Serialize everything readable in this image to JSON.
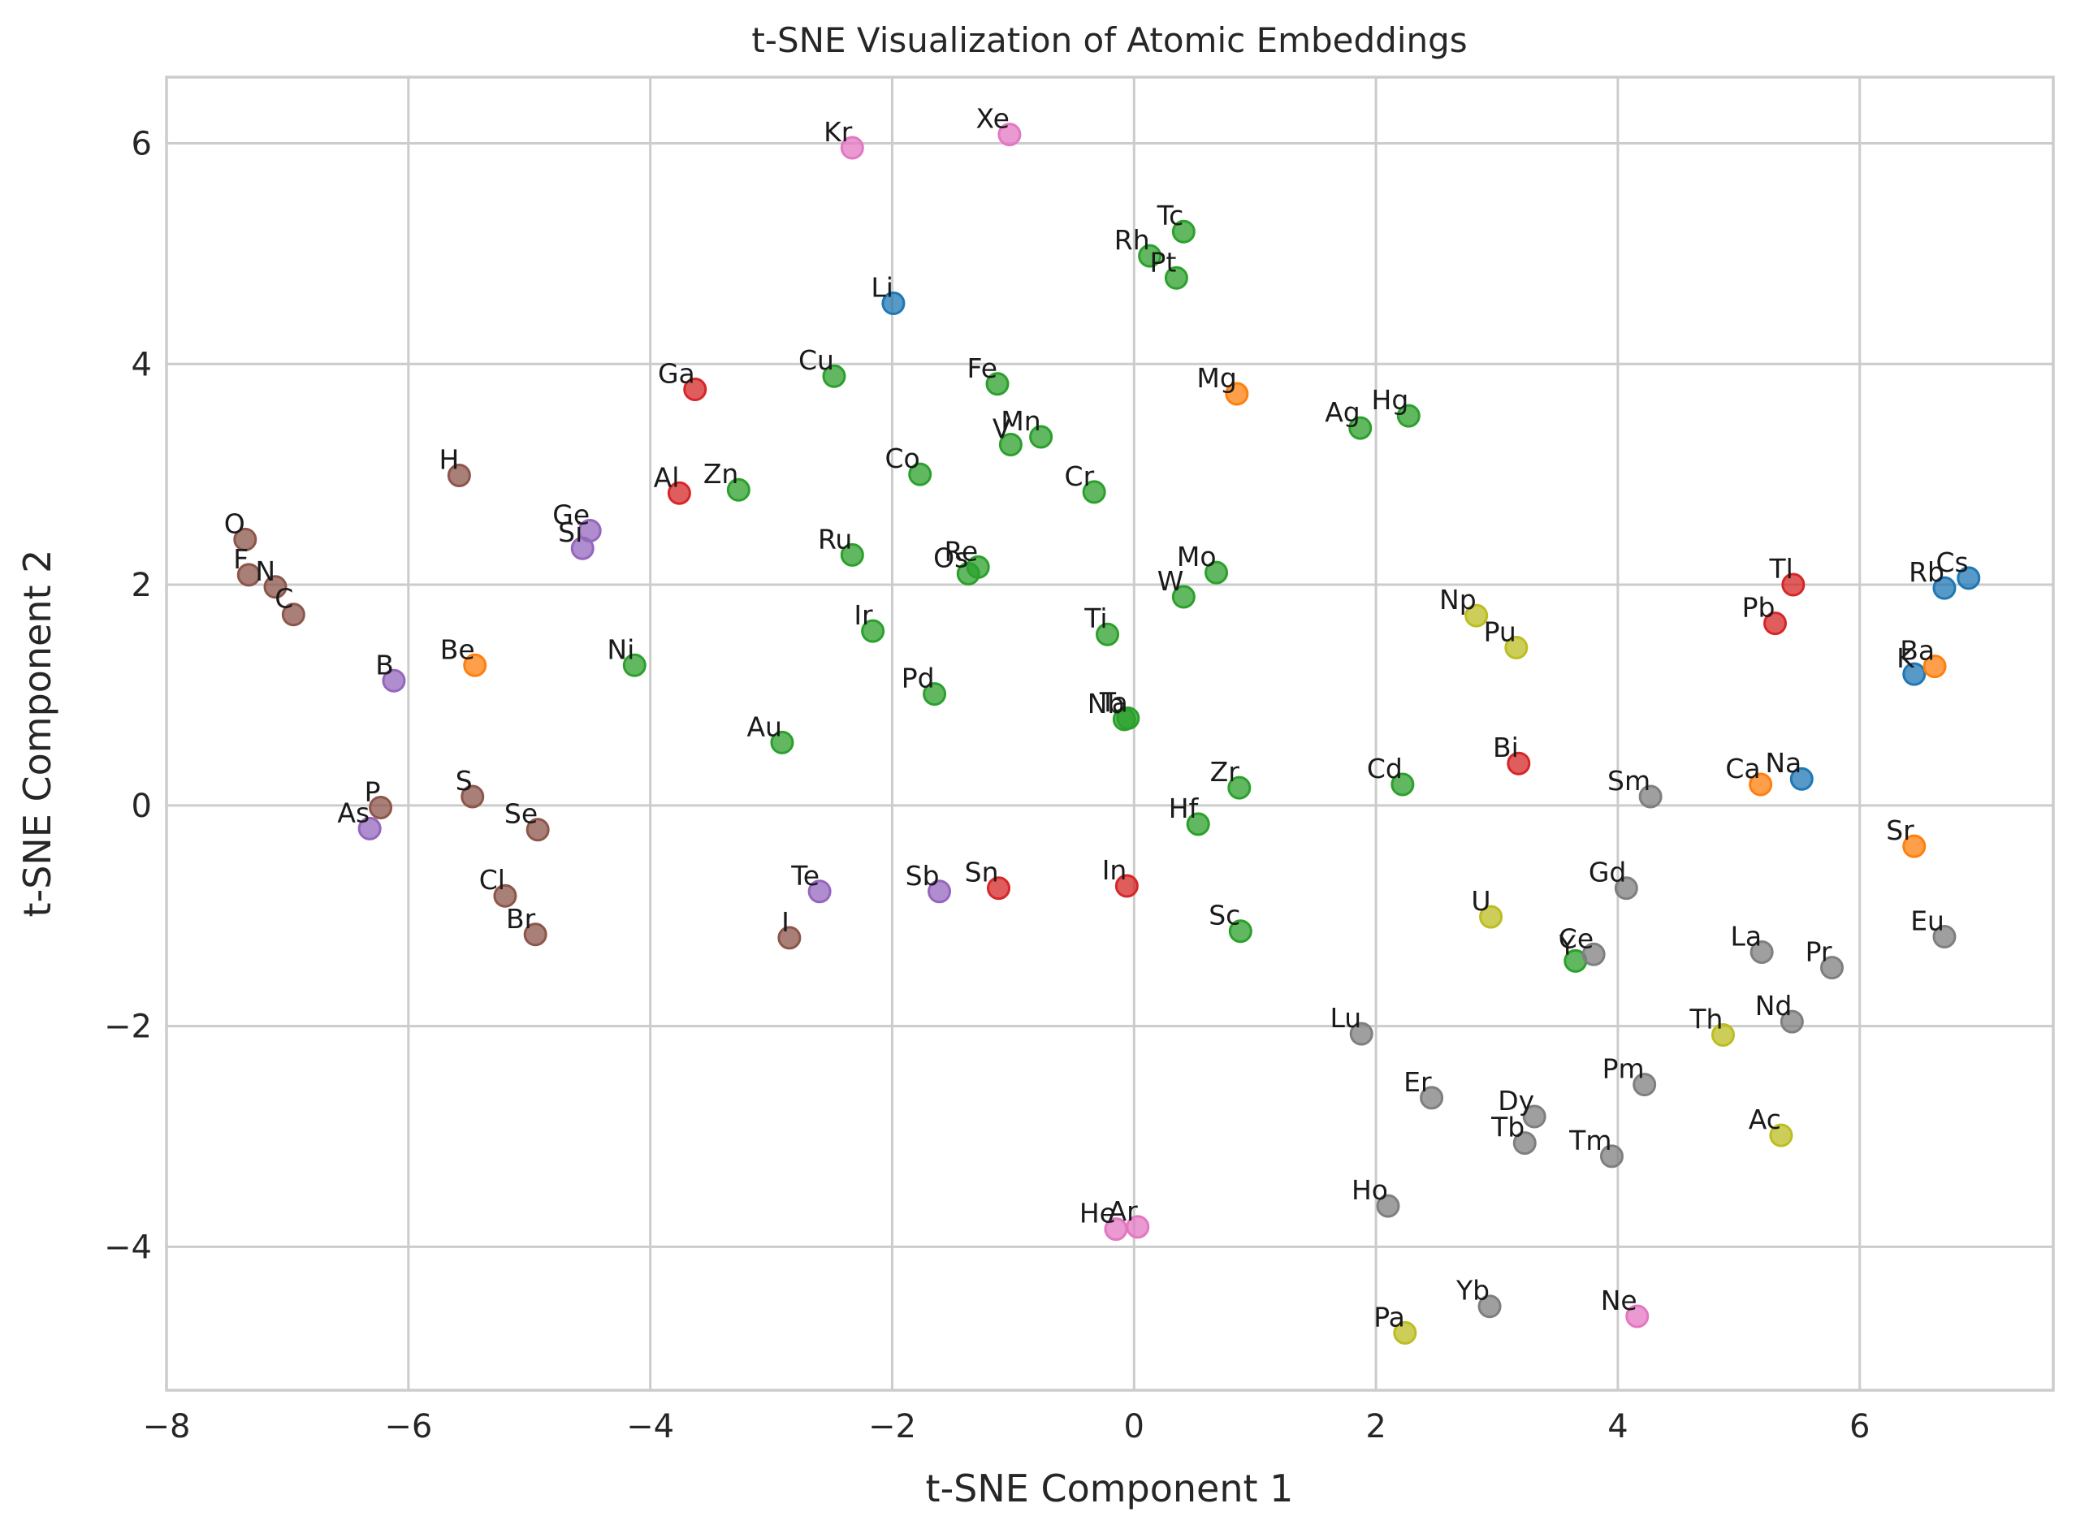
{
  "chart_data": {
    "type": "scatter",
    "title": "t-SNE Visualization of Atomic Embeddings",
    "xlabel": "t-SNE Component 1",
    "ylabel": "t-SNE Component 2",
    "xlim": [
      -8,
      7.6
    ],
    "ylim": [
      -5.3,
      6.6
    ],
    "xticks": [
      -8,
      -6,
      -4,
      -2,
      0,
      2,
      4,
      6
    ],
    "yticks": [
      -4,
      -2,
      0,
      2,
      4,
      6
    ],
    "xtick_labels": [
      "−8",
      "−6",
      "−4",
      "−2",
      "0",
      "2",
      "4",
      "6"
    ],
    "ytick_labels": [
      "−4",
      "−2",
      "0",
      "2",
      "4",
      "6"
    ],
    "grid": true,
    "legend": false,
    "colors": {
      "blue": "#1f77b4",
      "orange": "#ff7f0e",
      "green": "#2ca02c",
      "red": "#d62728",
      "purple": "#9467bd",
      "brown": "#8c564b",
      "pink": "#e377c2",
      "gray": "#7f7f7f",
      "olive": "#bcbd22"
    },
    "points": [
      {
        "label": "Li",
        "x": -1.99,
        "y": 4.55,
        "color": "blue"
      },
      {
        "label": "Na",
        "x": 5.52,
        "y": 0.24,
        "color": "blue"
      },
      {
        "label": "K",
        "x": 6.45,
        "y": 1.19,
        "color": "blue"
      },
      {
        "label": "Rb",
        "x": 6.7,
        "y": 1.97,
        "color": "blue"
      },
      {
        "label": "Cs",
        "x": 6.9,
        "y": 2.06,
        "color": "blue"
      },
      {
        "label": "Be",
        "x": -5.45,
        "y": 1.27,
        "color": "orange"
      },
      {
        "label": "Mg",
        "x": 0.85,
        "y": 3.73,
        "color": "orange"
      },
      {
        "label": "Ca",
        "x": 5.18,
        "y": 0.19,
        "color": "orange"
      },
      {
        "label": "Sr",
        "x": 6.45,
        "y": -0.37,
        "color": "orange"
      },
      {
        "label": "Ba",
        "x": 6.62,
        "y": 1.26,
        "color": "orange"
      },
      {
        "label": "Sc",
        "x": 0.88,
        "y": -1.14,
        "color": "green"
      },
      {
        "label": "Ti",
        "x": -0.22,
        "y": 1.55,
        "color": "green"
      },
      {
        "label": "V",
        "x": -1.02,
        "y": 3.27,
        "color": "green"
      },
      {
        "label": "Cr",
        "x": -0.33,
        "y": 2.84,
        "color": "green"
      },
      {
        "label": "Mn",
        "x": -0.77,
        "y": 3.34,
        "color": "green"
      },
      {
        "label": "Fe",
        "x": -1.13,
        "y": 3.82,
        "color": "green"
      },
      {
        "label": "Co",
        "x": -1.77,
        "y": 3.0,
        "color": "green"
      },
      {
        "label": "Ni",
        "x": -4.13,
        "y": 1.27,
        "color": "green"
      },
      {
        "label": "Cu",
        "x": -2.48,
        "y": 3.89,
        "color": "green"
      },
      {
        "label": "Zn",
        "x": -3.27,
        "y": 2.86,
        "color": "green"
      },
      {
        "label": "Y",
        "x": 3.65,
        "y": -1.41,
        "color": "green"
      },
      {
        "label": "Zr",
        "x": 0.87,
        "y": 0.16,
        "color": "green"
      },
      {
        "label": "Nb",
        "x": -0.08,
        "y": 0.78,
        "color": "green"
      },
      {
        "label": "Mo",
        "x": 0.68,
        "y": 2.11,
        "color": "green"
      },
      {
        "label": "Tc",
        "x": 0.41,
        "y": 5.2,
        "color": "green"
      },
      {
        "label": "Ru",
        "x": -2.33,
        "y": 2.27,
        "color": "green"
      },
      {
        "label": "Rh",
        "x": 0.13,
        "y": 4.98,
        "color": "green"
      },
      {
        "label": "Pd",
        "x": -1.65,
        "y": 1.01,
        "color": "green"
      },
      {
        "label": "Ag",
        "x": 1.87,
        "y": 3.42,
        "color": "green"
      },
      {
        "label": "Cd",
        "x": 2.22,
        "y": 0.19,
        "color": "green"
      },
      {
        "label": "Hf",
        "x": 0.53,
        "y": -0.17,
        "color": "green"
      },
      {
        "label": "Ta",
        "x": -0.05,
        "y": 0.79,
        "color": "green"
      },
      {
        "label": "W",
        "x": 0.41,
        "y": 1.89,
        "color": "green"
      },
      {
        "label": "Re",
        "x": -1.29,
        "y": 2.16,
        "color": "green"
      },
      {
        "label": "Os",
        "x": -1.37,
        "y": 2.1,
        "color": "green"
      },
      {
        "label": "Ir",
        "x": -2.16,
        "y": 1.58,
        "color": "green"
      },
      {
        "label": "Pt",
        "x": 0.35,
        "y": 4.78,
        "color": "green"
      },
      {
        "label": "Au",
        "x": -2.91,
        "y": 0.57,
        "color": "green"
      },
      {
        "label": "Hg",
        "x": 2.27,
        "y": 3.53,
        "color": "green"
      },
      {
        "label": "Al",
        "x": -3.76,
        "y": 2.83,
        "color": "red"
      },
      {
        "label": "Ga",
        "x": -3.63,
        "y": 3.77,
        "color": "red"
      },
      {
        "label": "In",
        "x": -0.06,
        "y": -0.73,
        "color": "red"
      },
      {
        "label": "Sn",
        "x": -1.12,
        "y": -0.75,
        "color": "red"
      },
      {
        "label": "Tl",
        "x": 5.45,
        "y": 2.0,
        "color": "red"
      },
      {
        "label": "Pb",
        "x": 5.3,
        "y": 1.65,
        "color": "red"
      },
      {
        "label": "Bi",
        "x": 3.18,
        "y": 0.38,
        "color": "red"
      },
      {
        "label": "B",
        "x": -6.12,
        "y": 1.13,
        "color": "purple"
      },
      {
        "label": "Si",
        "x": -4.56,
        "y": 2.33,
        "color": "purple"
      },
      {
        "label": "Ge",
        "x": -4.5,
        "y": 2.49,
        "color": "purple"
      },
      {
        "label": "As",
        "x": -6.32,
        "y": -0.21,
        "color": "purple"
      },
      {
        "label": "Sb",
        "x": -1.61,
        "y": -0.78,
        "color": "purple"
      },
      {
        "label": "Te",
        "x": -2.6,
        "y": -0.78,
        "color": "purple"
      },
      {
        "label": "H",
        "x": -5.58,
        "y": 2.99,
        "color": "brown"
      },
      {
        "label": "C",
        "x": -6.95,
        "y": 1.73,
        "color": "brown"
      },
      {
        "label": "N",
        "x": -7.1,
        "y": 1.98,
        "color": "brown"
      },
      {
        "label": "O",
        "x": -7.35,
        "y": 2.41,
        "color": "brown"
      },
      {
        "label": "F",
        "x": -7.32,
        "y": 2.09,
        "color": "brown"
      },
      {
        "label": "P",
        "x": -6.23,
        "y": -0.02,
        "color": "brown"
      },
      {
        "label": "S",
        "x": -5.47,
        "y": 0.08,
        "color": "brown"
      },
      {
        "label": "Cl",
        "x": -5.2,
        "y": -0.82,
        "color": "brown"
      },
      {
        "label": "Se",
        "x": -4.93,
        "y": -0.22,
        "color": "brown"
      },
      {
        "label": "Br",
        "x": -4.95,
        "y": -1.17,
        "color": "brown"
      },
      {
        "label": "I",
        "x": -2.85,
        "y": -1.2,
        "color": "brown"
      },
      {
        "label": "He",
        "x": -0.15,
        "y": -3.84,
        "color": "pink"
      },
      {
        "label": "Ne",
        "x": 4.16,
        "y": -4.63,
        "color": "pink"
      },
      {
        "label": "Ar",
        "x": 0.03,
        "y": -3.82,
        "color": "pink"
      },
      {
        "label": "Kr",
        "x": -2.33,
        "y": 5.96,
        "color": "pink"
      },
      {
        "label": "Xe",
        "x": -1.03,
        "y": 6.08,
        "color": "pink"
      },
      {
        "label": "La",
        "x": 5.19,
        "y": -1.33,
        "color": "gray"
      },
      {
        "label": "Ce",
        "x": 3.8,
        "y": -1.35,
        "color": "gray"
      },
      {
        "label": "Pr",
        "x": 5.77,
        "y": -1.47,
        "color": "gray"
      },
      {
        "label": "Nd",
        "x": 5.44,
        "y": -1.96,
        "color": "gray"
      },
      {
        "label": "Pm",
        "x": 4.22,
        "y": -2.53,
        "color": "gray"
      },
      {
        "label": "Sm",
        "x": 4.27,
        "y": 0.08,
        "color": "gray"
      },
      {
        "label": "Eu",
        "x": 6.7,
        "y": -1.19,
        "color": "gray"
      },
      {
        "label": "Gd",
        "x": 4.07,
        "y": -0.75,
        "color": "gray"
      },
      {
        "label": "Tb",
        "x": 3.23,
        "y": -3.06,
        "color": "gray"
      },
      {
        "label": "Dy",
        "x": 3.31,
        "y": -2.82,
        "color": "gray"
      },
      {
        "label": "Ho",
        "x": 2.1,
        "y": -3.63,
        "color": "gray"
      },
      {
        "label": "Er",
        "x": 2.46,
        "y": -2.65,
        "color": "gray"
      },
      {
        "label": "Tm",
        "x": 3.95,
        "y": -3.18,
        "color": "gray"
      },
      {
        "label": "Yb",
        "x": 2.94,
        "y": -4.54,
        "color": "gray"
      },
      {
        "label": "Lu",
        "x": 1.88,
        "y": -2.07,
        "color": "gray"
      },
      {
        "label": "Ac",
        "x": 5.35,
        "y": -2.99,
        "color": "olive"
      },
      {
        "label": "Th",
        "x": 4.87,
        "y": -2.08,
        "color": "olive"
      },
      {
        "label": "Pa",
        "x": 2.24,
        "y": -4.78,
        "color": "olive"
      },
      {
        "label": "U",
        "x": 2.95,
        "y": -1.01,
        "color": "olive"
      },
      {
        "label": "Np",
        "x": 2.83,
        "y": 1.72,
        "color": "olive"
      },
      {
        "label": "Pu",
        "x": 3.16,
        "y": 1.43,
        "color": "olive"
      }
    ]
  }
}
